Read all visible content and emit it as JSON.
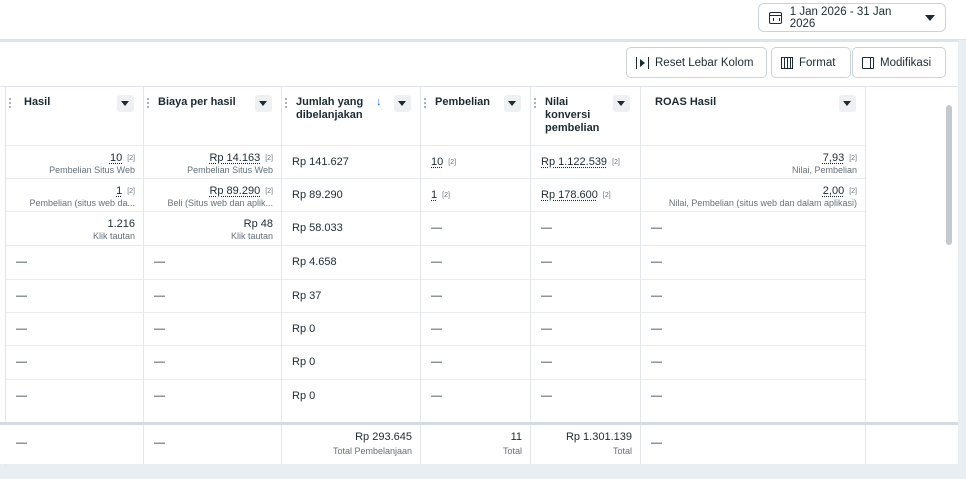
{
  "date_range": {
    "label": "1 Jan 2026 - 31 Jan 2026",
    "icon": "calendar-icon"
  },
  "toolbar": {
    "reset_label": "Reset Lebar Kolom",
    "format_label": "Format",
    "modify_label": "Modifikasi"
  },
  "columns": {
    "hasil": "Hasil",
    "biaya": "Biaya per hasil",
    "jumlah": "Jumlah yang dibelanjakan",
    "pembelian": "Pembelian",
    "nilai": "Nilai konversi pembelian",
    "roas": "ROAS Hasil"
  },
  "sort_indicator": "↓",
  "footnote": "[2]",
  "dash": "—",
  "rows": [
    {
      "hasil": "10",
      "hasil_sub": "Pembelian Situs Web",
      "biaya": "Rp 14.163",
      "biaya_sub": "Pembelian Situs Web",
      "jumlah": "Rp 141.627",
      "pembelian": "10",
      "nilai": "Rp 1.122.539",
      "roas": "7,93",
      "roas_sub": "Nilai, Pembelian"
    },
    {
      "hasil": "1",
      "hasil_sub": "Pembelian (situs web da...",
      "biaya": "Rp 89.290",
      "biaya_sub": "Beli (Situs web dan aplik...",
      "jumlah": "Rp 89.290",
      "pembelian": "1",
      "nilai": "Rp 178.600",
      "roas": "2,00",
      "roas_sub": "Nilai, Pembelian (situs web dan dalam aplikasi)"
    },
    {
      "hasil": "1.216",
      "hasil_sub": "Klik tautan",
      "biaya": "Rp 48",
      "biaya_sub": "Klik tautan",
      "jumlah": "Rp 58.033"
    },
    {
      "jumlah": "Rp 4.658"
    },
    {
      "jumlah": "Rp 37"
    },
    {
      "jumlah": "Rp 0"
    },
    {
      "jumlah": "Rp 0"
    },
    {
      "jumlah": "Rp 0"
    }
  ],
  "totals": {
    "jumlah": "Rp 293.645",
    "jumlah_sub": "Total Pembelanjaan",
    "pembelian": "11",
    "pembelian_sub": "Total",
    "nilai": "Rp 1.301.139",
    "nilai_sub": "Total"
  }
}
